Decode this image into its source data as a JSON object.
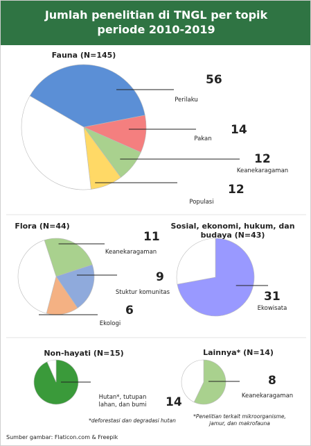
{
  "title": "Jumlah penelitian di TNGL per topik periode 2010-2019",
  "footer": "Sumber gambar: Flaticon.com & Freepik",
  "chart_data": [
    {
      "type": "pie",
      "title": "Fauna (N=145)",
      "categories": [
        "Perilaku",
        "Pakan",
        "Keanekaragaman",
        "Populasi",
        null
      ],
      "values": [
        56,
        14,
        12,
        12,
        51
      ],
      "colors": [
        "#5b8fd6",
        "#f47f7f",
        "#a9d18e",
        "#ffd966",
        "#ffffff"
      ]
    },
    {
      "type": "pie",
      "title": "Flora (N=44)",
      "categories": [
        "Keanekaragaman",
        "Stuktur komunitas",
        "Ekologi",
        null
      ],
      "values": [
        11,
        9,
        6,
        18
      ],
      "colors": [
        "#a9d18e",
        "#8faadc",
        "#f4b183",
        "#ffffff"
      ]
    },
    {
      "type": "pie",
      "title": "Sosial, ekonomi, hukum, dan budaya (N=43)",
      "categories": [
        "Ekowisata",
        null
      ],
      "values": [
        31,
        12
      ],
      "colors": [
        "#9999ff",
        "#ffffff"
      ]
    },
    {
      "type": "pie",
      "title": "Non-hayati (N=15)",
      "categories": [
        "Hutan*, tutupan lahan, dan bumi",
        null
      ],
      "values": [
        14,
        1
      ],
      "colors": [
        "#3a9a3a",
        "#ffffff"
      ],
      "note": "*deforestasi dan degradasi hutan"
    },
    {
      "type": "pie",
      "title": "Lainnya* (N=14)",
      "categories": [
        "Keanekaragaman",
        null
      ],
      "values": [
        8,
        6
      ],
      "colors": [
        "#a9d18e",
        "#ffffff"
      ],
      "note": "*Penelitian terkait mikroorganisme, jamur, dan makrofauna"
    }
  ]
}
